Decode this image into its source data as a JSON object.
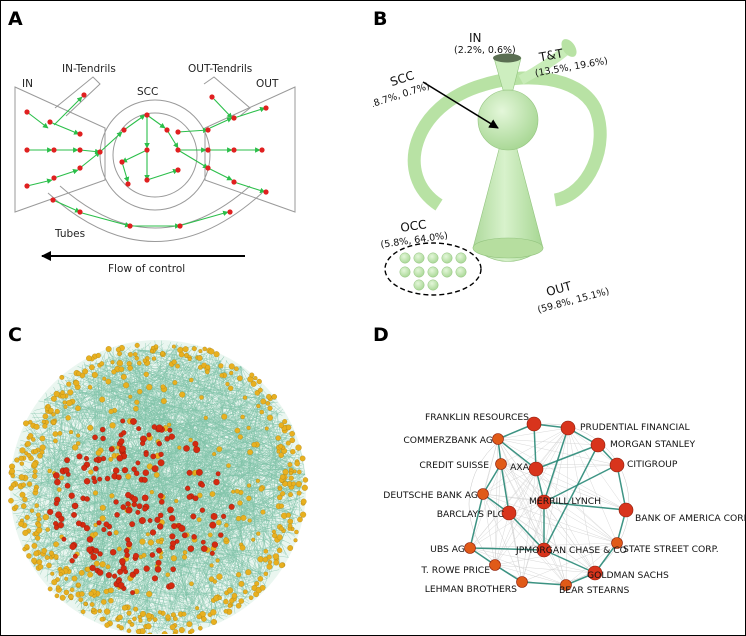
{
  "panels": [
    {
      "letter": "A"
    },
    {
      "letter": "B"
    },
    {
      "letter": "C"
    },
    {
      "letter": "D"
    }
  ],
  "panel_a": {
    "labels": {
      "in": "IN",
      "in_tendrils": "IN-Tendrils",
      "scc": "SCC",
      "out_tendrils": "OUT-Tendrils",
      "out": "OUT",
      "tubes": "Tubes",
      "flow": "Flow of control"
    },
    "colors": {
      "node": "#e02020",
      "edge": "#2bbf4a",
      "shape": "#9a9a9a"
    }
  },
  "panel_b": {
    "components": [
      {
        "key": "in",
        "name": "IN",
        "stats": "(2.2%, 0.6%)"
      },
      {
        "key": "tt",
        "name": "T&T",
        "stats": "(13.5%, 19.6%)"
      },
      {
        "key": "scc",
        "name": "SCC",
        "stats": "(18.7%, 0.7%)"
      },
      {
        "key": "occ",
        "name": "OCC",
        "stats": "(5.8%, 64.0%)"
      },
      {
        "key": "out",
        "name": "OUT",
        "stats": "(59.8%, 15.1%)"
      }
    ],
    "colors": {
      "shape": "#c8ecb8",
      "shape_dark": "#9ccf88"
    }
  },
  "panel_c": {
    "colors": {
      "core_node": "#d42a10",
      "periphery_node": "#e8b020",
      "edge": "#2a9a6e"
    }
  },
  "panel_d": {
    "nodes": [
      {
        "label": "FRANKLIN RESOURCES"
      },
      {
        "label": "PRUDENTIAL FINANCIAL"
      },
      {
        "label": "COMMERZBANK AG"
      },
      {
        "label": "MORGAN STANLEY"
      },
      {
        "label": "CREDIT SUISSE"
      },
      {
        "label": "AXA"
      },
      {
        "label": "CITIGROUP"
      },
      {
        "label": "DEUTSCHE BANK AG"
      },
      {
        "label": "MERRILL LYNCH"
      },
      {
        "label": "BANK OF AMERICA CORI"
      },
      {
        "label": "BARCLAYS PLC"
      },
      {
        "label": "UBS AG"
      },
      {
        "label": "JPMORGAN CHASE & CO"
      },
      {
        "label": "STATE STREET CORP."
      },
      {
        "label": "T. ROWE PRICE"
      },
      {
        "label": "GOLDMAN SACHS"
      },
      {
        "label": "LEHMAN BROTHERS"
      },
      {
        "label": "BEAR STEARNS"
      }
    ],
    "colors": {
      "node": "#d8341c",
      "node_small": "#e05a18",
      "edge": "#2a8a78",
      "bg_edge": "#c8c8c8"
    }
  }
}
